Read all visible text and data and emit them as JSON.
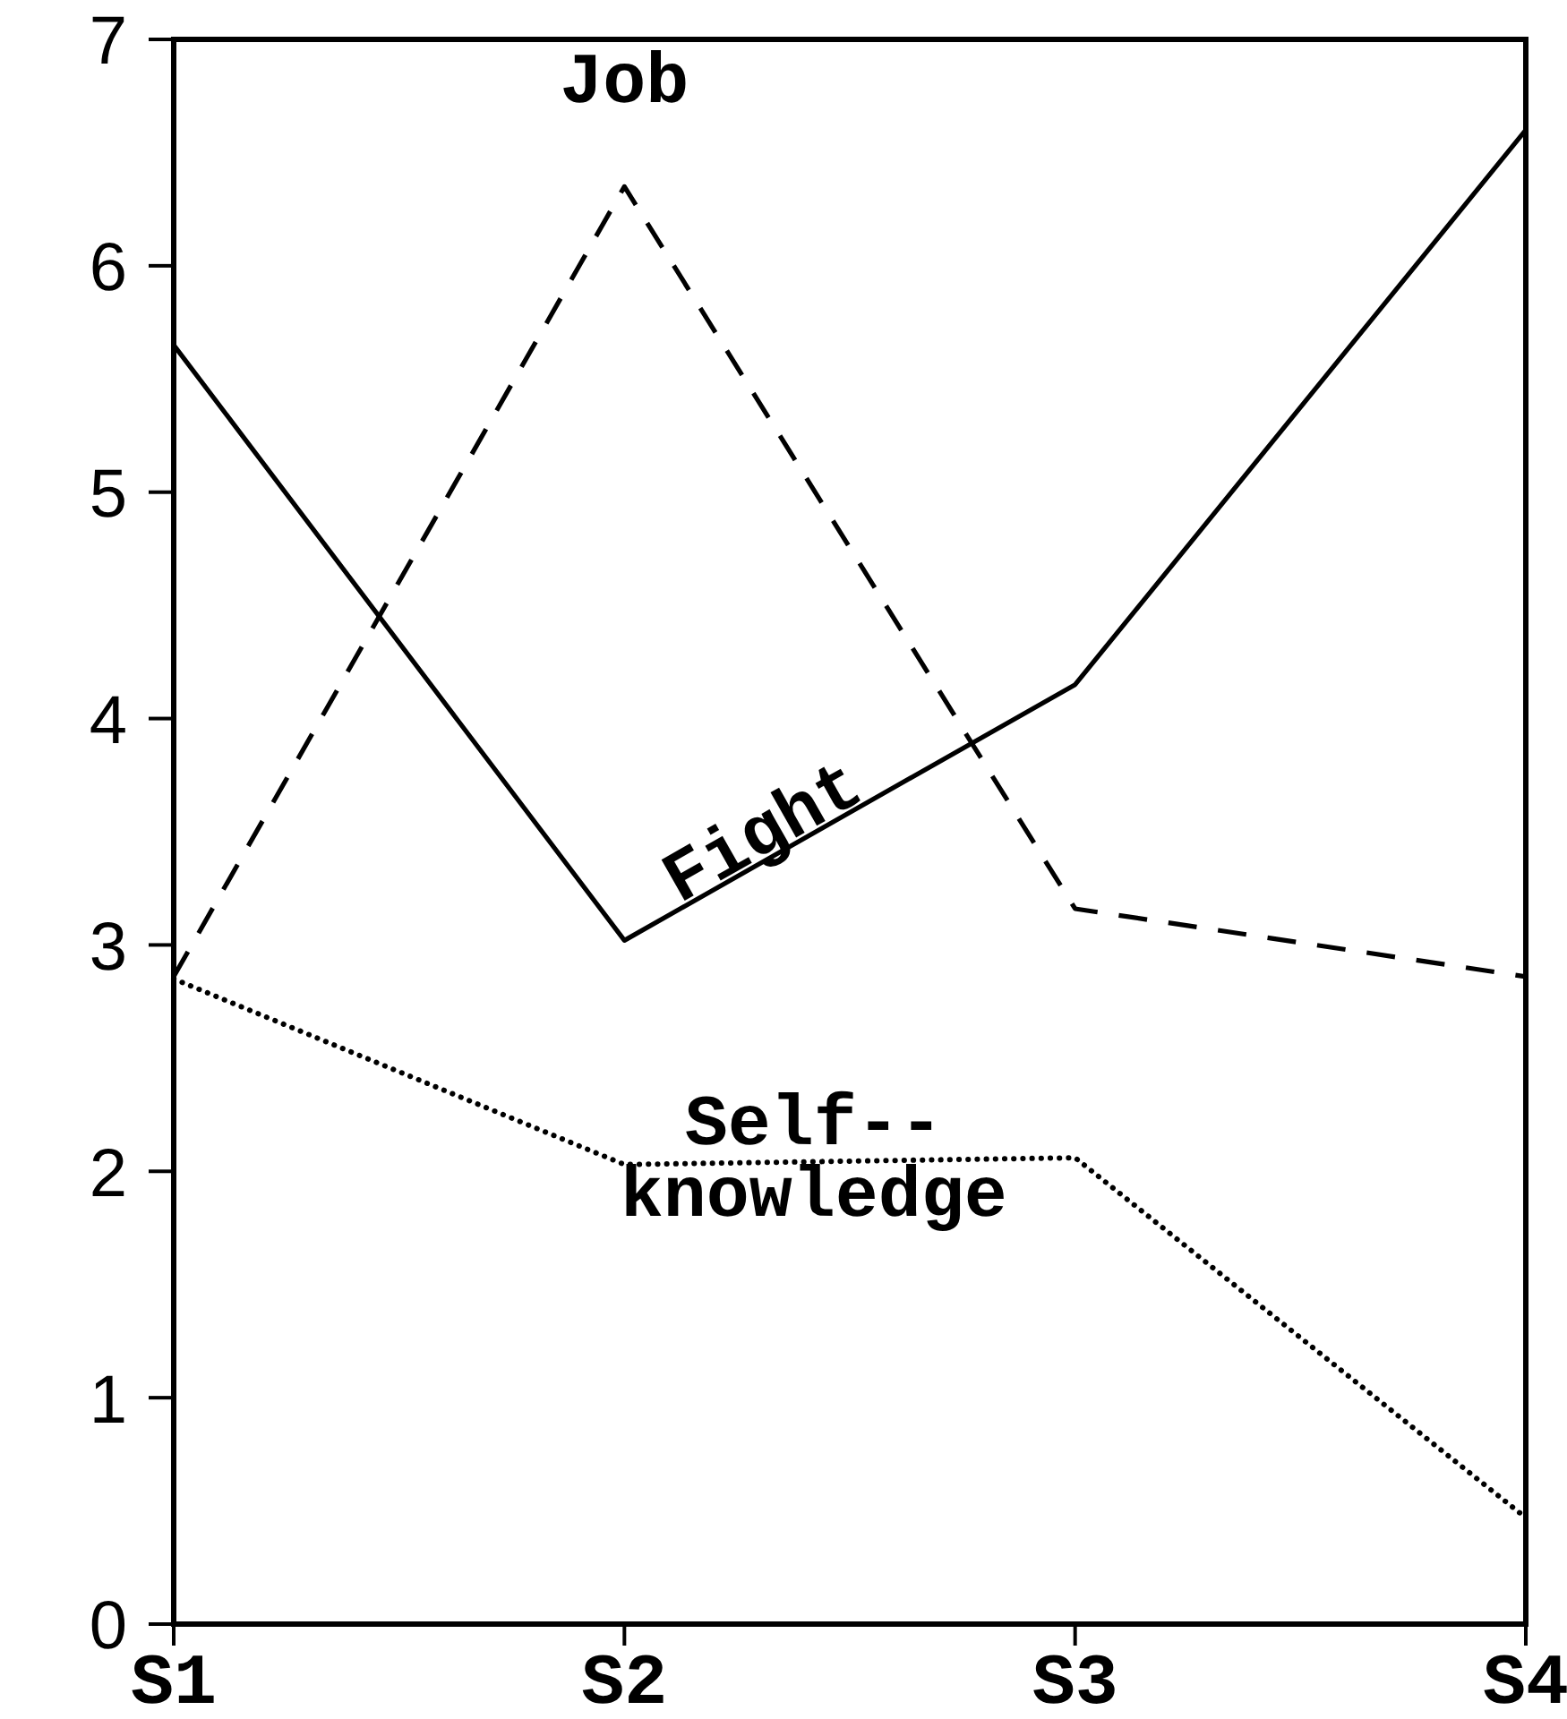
{
  "chart_data": {
    "type": "line",
    "categories": [
      "S1",
      "S2",
      "S3",
      "S4"
    ],
    "ylim": [
      0,
      7
    ],
    "yticks": [
      0,
      1,
      2,
      3,
      4,
      5,
      6,
      7
    ],
    "series": [
      {
        "name": "Fight",
        "color": "#000000",
        "line_style": "solid",
        "values": [
          5.65,
          3.02,
          4.15,
          6.6
        ]
      },
      {
        "name": "Job",
        "color": "#000000",
        "line_style": "dashed",
        "values": [
          2.86,
          6.35,
          3.16,
          2.86
        ]
      },
      {
        "name": "Self-- knowledge",
        "color": "#000000",
        "line_style": "dotted",
        "values": [
          2.85,
          2.03,
          2.06,
          0.47
        ]
      }
    ]
  }
}
